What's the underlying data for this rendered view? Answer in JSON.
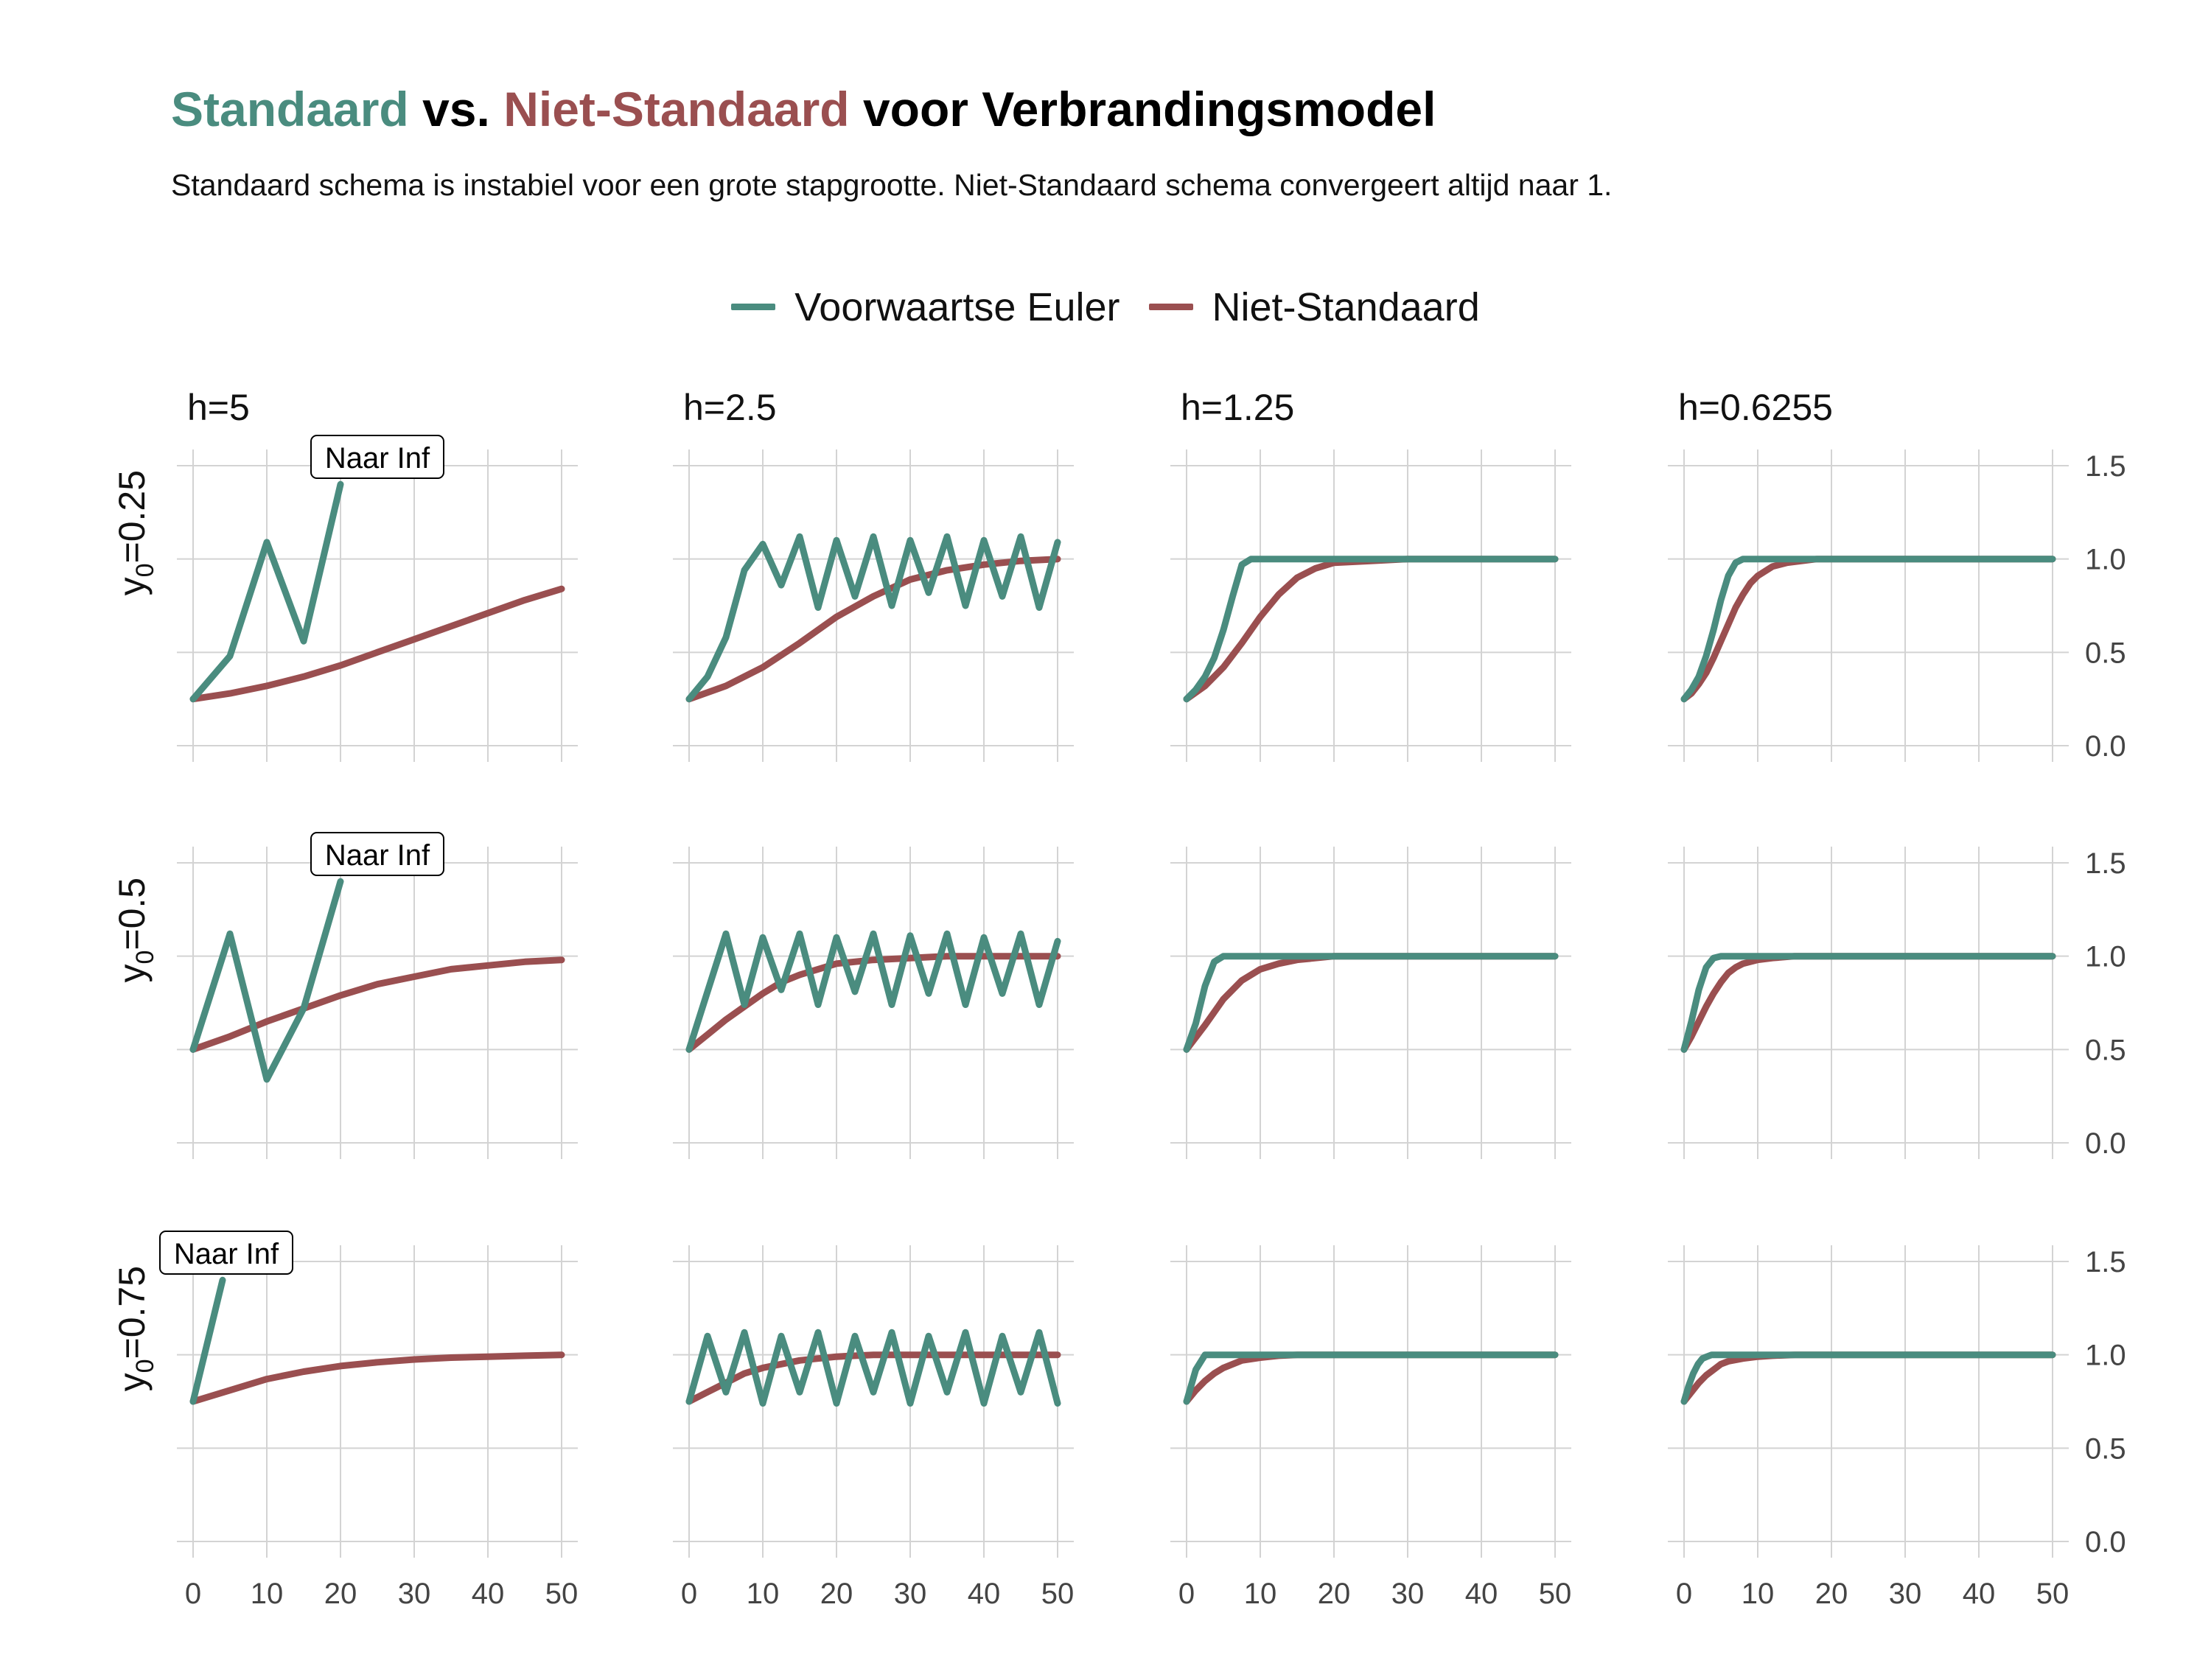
{
  "title": {
    "part1": "Standaard",
    "part2": " vs. ",
    "part3": "Niet-Standaard",
    "part4": " voor Verbrandingsmodel"
  },
  "subtitle": "Standaard schema is instabiel voor een grote stapgrootte. Niet-Standaard schema convergeert altijd naar 1.",
  "colors": {
    "euler": "#4a8c7f",
    "nonstandard": "#9a4f50",
    "grid": "#d3d3d3",
    "text": "#111111"
  },
  "legend": [
    {
      "label": "Voorwaartse Euler",
      "color": "#4a8c7f"
    },
    {
      "label": "Niet-Standaard",
      "color": "#9a4f50"
    }
  ],
  "chart_data": {
    "type": "line",
    "facets": {
      "columns": [
        "h=5",
        "h=2.5",
        "h=1.25",
        "h=0.6255"
      ],
      "rows": [
        "y0=0.25",
        "y0=0.5",
        "y0=0.75"
      ]
    },
    "x_ticks": [
      0,
      10,
      20,
      30,
      40,
      50
    ],
    "y_ticks": [
      0.0,
      0.5,
      1.0,
      1.5
    ],
    "y_tick_labels": [
      "0.0",
      "0.5",
      "1.0",
      "1.5"
    ],
    "xlim": [
      0,
      50
    ],
    "ylim": [
      0,
      1.5
    ],
    "grid": true,
    "legend_position": "top",
    "annotation": "Naar Inf",
    "panels": [
      {
        "row": 0,
        "col": 0,
        "h": 5,
        "y0": 0.25,
        "euler": {
          "x": [
            0,
            5,
            10,
            15,
            20
          ],
          "y": [
            0.25,
            0.48,
            1.09,
            0.56,
            1.4
          ]
        },
        "nonstandard": {
          "x": [
            0,
            5,
            10,
            15,
            20,
            25,
            30,
            35,
            40,
            45,
            50
          ],
          "y": [
            0.25,
            0.28,
            0.32,
            0.37,
            0.43,
            0.5,
            0.57,
            0.64,
            0.71,
            0.78,
            0.84
          ]
        },
        "annotation": "Naar Inf"
      },
      {
        "row": 0,
        "col": 1,
        "h": 2.5,
        "y0": 0.25,
        "euler": {
          "x": [
            0,
            2.5,
            5,
            7.5,
            10,
            12.5,
            15,
            17.5,
            20,
            22.5,
            25,
            27.5,
            30,
            32.5,
            35,
            37.5,
            40,
            42.5,
            45,
            47.5,
            50
          ],
          "y": [
            0.25,
            0.37,
            0.58,
            0.94,
            1.08,
            0.86,
            1.12,
            0.74,
            1.1,
            0.8,
            1.12,
            0.75,
            1.1,
            0.82,
            1.12,
            0.75,
            1.1,
            0.8,
            1.12,
            0.74,
            1.09
          ]
        },
        "nonstandard": {
          "x": [
            0,
            5,
            10,
            15,
            20,
            25,
            30,
            35,
            40,
            45,
            50
          ],
          "y": [
            0.25,
            0.32,
            0.42,
            0.55,
            0.69,
            0.8,
            0.89,
            0.94,
            0.97,
            0.99,
            1.0
          ]
        }
      },
      {
        "row": 0,
        "col": 2,
        "h": 1.25,
        "y0": 0.25,
        "euler": {
          "x": [
            0,
            1.25,
            2.5,
            3.75,
            5,
            6.25,
            7.5,
            8.75,
            10,
            20,
            30,
            40,
            50
          ],
          "y": [
            0.25,
            0.3,
            0.37,
            0.47,
            0.62,
            0.8,
            0.97,
            1.0,
            1.0,
            1.0,
            1.0,
            1.0,
            1.0
          ]
        },
        "nonstandard": {
          "x": [
            0,
            2.5,
            5,
            7.5,
            10,
            12.5,
            15,
            17.5,
            20,
            25,
            30,
            35,
            40,
            45,
            50
          ],
          "y": [
            0.25,
            0.32,
            0.42,
            0.55,
            0.69,
            0.81,
            0.9,
            0.95,
            0.98,
            0.99,
            1.0,
            1.0,
            1.0,
            1.0,
            1.0
          ]
        }
      },
      {
        "row": 0,
        "col": 3,
        "h": 0.6255,
        "y0": 0.25,
        "euler": {
          "x": [
            0,
            1,
            2,
            3,
            4,
            5,
            6,
            7,
            8,
            9,
            10,
            20,
            30,
            40,
            50
          ],
          "y": [
            0.25,
            0.3,
            0.37,
            0.48,
            0.62,
            0.78,
            0.91,
            0.98,
            1.0,
            1.0,
            1.0,
            1.0,
            1.0,
            1.0,
            1.0
          ]
        },
        "nonstandard": {
          "x": [
            0,
            1,
            2,
            3,
            4,
            5,
            6,
            7,
            8,
            9,
            10,
            12,
            14,
            16,
            18,
            20,
            25,
            30,
            40,
            50
          ],
          "y": [
            0.25,
            0.28,
            0.33,
            0.39,
            0.47,
            0.56,
            0.65,
            0.74,
            0.81,
            0.87,
            0.91,
            0.96,
            0.98,
            0.99,
            1.0,
            1.0,
            1.0,
            1.0,
            1.0,
            1.0
          ]
        }
      },
      {
        "row": 1,
        "col": 0,
        "h": 5,
        "y0": 0.5,
        "euler": {
          "x": [
            0,
            5,
            10,
            15,
            20
          ],
          "y": [
            0.5,
            1.12,
            0.34,
            0.72,
            1.4
          ]
        },
        "nonstandard": {
          "x": [
            0,
            5,
            10,
            15,
            20,
            25,
            30,
            35,
            40,
            45,
            50
          ],
          "y": [
            0.5,
            0.57,
            0.65,
            0.72,
            0.79,
            0.85,
            0.89,
            0.93,
            0.95,
            0.97,
            0.98
          ]
        },
        "annotation": "Naar Inf"
      },
      {
        "row": 1,
        "col": 1,
        "h": 2.5,
        "y0": 0.5,
        "euler": {
          "x": [
            0,
            2.5,
            5,
            7.5,
            10,
            12.5,
            15,
            17.5,
            20,
            22.5,
            25,
            27.5,
            30,
            32.5,
            35,
            37.5,
            40,
            42.5,
            45,
            47.5,
            50
          ],
          "y": [
            0.5,
            0.81,
            1.12,
            0.74,
            1.1,
            0.82,
            1.12,
            0.74,
            1.1,
            0.81,
            1.12,
            0.74,
            1.11,
            0.8,
            1.12,
            0.74,
            1.1,
            0.8,
            1.12,
            0.74,
            1.08
          ]
        },
        "nonstandard": {
          "x": [
            0,
            2.5,
            5,
            7.5,
            10,
            12.5,
            15,
            17.5,
            20,
            25,
            30,
            35,
            40,
            45,
            50
          ],
          "y": [
            0.5,
            0.58,
            0.66,
            0.73,
            0.8,
            0.86,
            0.9,
            0.93,
            0.96,
            0.98,
            0.99,
            1.0,
            1.0,
            1.0,
            1.0
          ]
        }
      },
      {
        "row": 1,
        "col": 2,
        "h": 1.25,
        "y0": 0.5,
        "euler": {
          "x": [
            0,
            1.25,
            2.5,
            3.75,
            5,
            6.25,
            10,
            20,
            30,
            40,
            50
          ],
          "y": [
            0.5,
            0.64,
            0.84,
            0.97,
            1.0,
            1.0,
            1.0,
            1.0,
            1.0,
            1.0,
            1.0
          ]
        },
        "nonstandard": {
          "x": [
            0,
            2.5,
            5,
            7.5,
            10,
            12.5,
            15,
            17.5,
            20,
            25,
            30,
            40,
            50
          ],
          "y": [
            0.5,
            0.63,
            0.77,
            0.87,
            0.93,
            0.96,
            0.98,
            0.99,
            1.0,
            1.0,
            1.0,
            1.0,
            1.0
          ]
        }
      },
      {
        "row": 1,
        "col": 3,
        "h": 0.6255,
        "y0": 0.5,
        "euler": {
          "x": [
            0,
            1,
            2,
            3,
            4,
            5,
            6,
            10,
            20,
            30,
            40,
            50
          ],
          "y": [
            0.5,
            0.65,
            0.82,
            0.94,
            0.99,
            1.0,
            1.0,
            1.0,
            1.0,
            1.0,
            1.0,
            1.0
          ]
        },
        "nonstandard": {
          "x": [
            0,
            1,
            2,
            3,
            4,
            5,
            6,
            7,
            8,
            10,
            12,
            15,
            20,
            30,
            40,
            50
          ],
          "y": [
            0.5,
            0.57,
            0.65,
            0.73,
            0.8,
            0.86,
            0.91,
            0.94,
            0.96,
            0.98,
            0.99,
            1.0,
            1.0,
            1.0,
            1.0,
            1.0
          ]
        }
      },
      {
        "row": 2,
        "col": 0,
        "h": 5,
        "y0": 0.75,
        "euler": {
          "x": [
            0,
            4
          ],
          "y": [
            0.75,
            1.4
          ]
        },
        "nonstandard": {
          "x": [
            0,
            5,
            10,
            15,
            20,
            25,
            30,
            35,
            40,
            45,
            50
          ],
          "y": [
            0.75,
            0.81,
            0.87,
            0.91,
            0.94,
            0.96,
            0.975,
            0.985,
            0.99,
            0.995,
            1.0
          ]
        },
        "annotation": "Naar Inf"
      },
      {
        "row": 2,
        "col": 1,
        "h": 2.5,
        "y0": 0.75,
        "euler": {
          "x": [
            0,
            2.5,
            5,
            7.5,
            10,
            12.5,
            15,
            17.5,
            20,
            22.5,
            25,
            27.5,
            30,
            32.5,
            35,
            37.5,
            40,
            42.5,
            45,
            47.5,
            50
          ],
          "y": [
            0.75,
            1.1,
            0.8,
            1.12,
            0.74,
            1.1,
            0.8,
            1.12,
            0.74,
            1.1,
            0.8,
            1.12,
            0.74,
            1.1,
            0.8,
            1.12,
            0.74,
            1.1,
            0.8,
            1.12,
            0.74
          ]
        },
        "nonstandard": {
          "x": [
            0,
            2.5,
            5,
            7.5,
            10,
            12.5,
            15,
            17.5,
            20,
            25,
            30,
            40,
            50
          ],
          "y": [
            0.75,
            0.8,
            0.85,
            0.9,
            0.93,
            0.95,
            0.97,
            0.98,
            0.99,
            1.0,
            1.0,
            1.0,
            1.0
          ]
        }
      },
      {
        "row": 2,
        "col": 2,
        "h": 1.25,
        "y0": 0.75,
        "euler": {
          "x": [
            0,
            1.25,
            2.5,
            3.75,
            5,
            10,
            20,
            30,
            40,
            50
          ],
          "y": [
            0.75,
            0.92,
            1.0,
            1.0,
            1.0,
            1.0,
            1.0,
            1.0,
            1.0,
            1.0
          ]
        },
        "nonstandard": {
          "x": [
            0,
            1.25,
            2.5,
            3.75,
            5,
            7.5,
            10,
            12.5,
            15,
            20,
            30,
            40,
            50
          ],
          "y": [
            0.75,
            0.81,
            0.86,
            0.9,
            0.93,
            0.97,
            0.985,
            0.995,
            1.0,
            1.0,
            1.0,
            1.0,
            1.0
          ]
        }
      },
      {
        "row": 2,
        "col": 3,
        "h": 0.6255,
        "y0": 0.75,
        "euler": {
          "x": [
            0,
            0.6,
            1.25,
            1.9,
            2.5,
            3.1,
            3.75,
            5,
            10,
            20,
            30,
            40,
            50
          ],
          "y": [
            0.75,
            0.83,
            0.9,
            0.95,
            0.98,
            0.99,
            1.0,
            1.0,
            1.0,
            1.0,
            1.0,
            1.0,
            1.0
          ]
        },
        "nonstandard": {
          "x": [
            0,
            1,
            2,
            3,
            4,
            5,
            6,
            8,
            10,
            12,
            15,
            20,
            30,
            40,
            50
          ],
          "y": [
            0.75,
            0.8,
            0.85,
            0.89,
            0.92,
            0.95,
            0.965,
            0.98,
            0.99,
            0.995,
            1.0,
            1.0,
            1.0,
            1.0,
            1.0
          ]
        }
      }
    ]
  }
}
